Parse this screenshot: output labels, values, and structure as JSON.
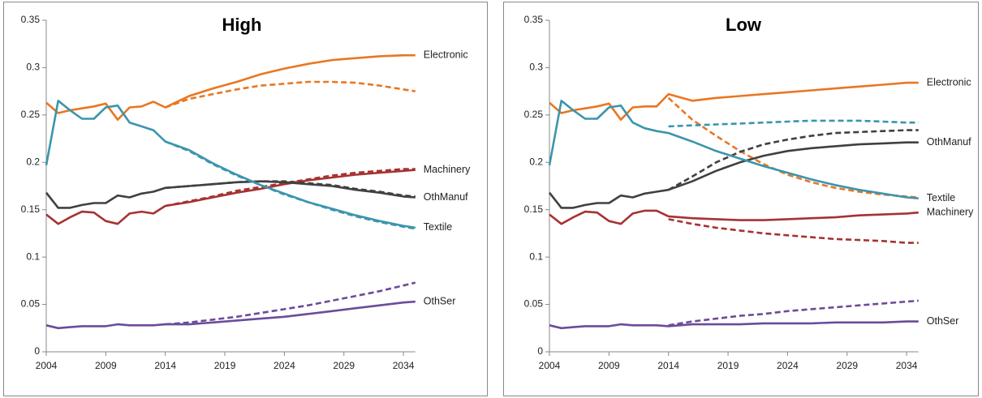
{
  "chart_data": [
    {
      "type": "line",
      "title": "High",
      "x": [
        2004,
        2005,
        2006,
        2007,
        2008,
        2009,
        2010,
        2011,
        2012,
        2013,
        2014,
        2016,
        2018,
        2020,
        2022,
        2024,
        2026,
        2028,
        2030,
        2032,
        2034,
        2035
      ],
      "xlim": [
        2004,
        2035
      ],
      "xticks": [
        2004,
        2009,
        2014,
        2019,
        2024,
        2029,
        2034
      ],
      "ylim": [
        0,
        0.35
      ],
      "yticks": [
        0,
        0.05,
        0.1,
        0.15,
        0.2,
        0.25,
        0.3,
        0.35
      ],
      "grid": false,
      "series": [
        {
          "name": "Electronic",
          "color": "#e87722",
          "values": [
            0.263,
            0.252,
            0.255,
            0.257,
            0.259,
            0.262,
            0.245,
            0.258,
            0.259,
            0.264,
            0.258,
            0.27,
            0.278,
            0.285,
            0.293,
            0.299,
            0.304,
            0.308,
            0.31,
            0.312,
            0.313,
            0.313
          ],
          "dashed_values": [
            null,
            null,
            null,
            null,
            null,
            null,
            null,
            null,
            null,
            null,
            0.258,
            0.267,
            0.272,
            0.277,
            0.281,
            0.283,
            0.285,
            0.285,
            0.284,
            0.281,
            0.277,
            0.275
          ]
        },
        {
          "name": "Machinery",
          "color": "#a63232",
          "values": [
            0.145,
            0.135,
            0.142,
            0.148,
            0.147,
            0.138,
            0.135,
            0.146,
            0.148,
            0.146,
            0.154,
            0.158,
            0.163,
            0.168,
            0.172,
            0.177,
            0.181,
            0.184,
            0.187,
            0.189,
            0.191,
            0.192
          ],
          "dashed_values": [
            null,
            null,
            null,
            null,
            null,
            null,
            null,
            null,
            null,
            null,
            0.154,
            0.159,
            0.164,
            0.17,
            0.174,
            0.178,
            0.182,
            0.186,
            0.189,
            0.191,
            0.193,
            0.193
          ]
        },
        {
          "name": "OthManuf",
          "color": "#404040",
          "values": [
            0.168,
            0.152,
            0.152,
            0.155,
            0.157,
            0.157,
            0.165,
            0.163,
            0.167,
            0.169,
            0.173,
            0.175,
            0.177,
            0.179,
            0.18,
            0.179,
            0.177,
            0.175,
            0.171,
            0.168,
            0.164,
            0.163
          ],
          "dashed_values": [
            null,
            null,
            null,
            null,
            null,
            null,
            null,
            null,
            null,
            null,
            0.173,
            0.175,
            0.177,
            0.179,
            0.18,
            0.18,
            0.178,
            0.176,
            0.172,
            0.169,
            0.165,
            0.164
          ]
        },
        {
          "name": "Textile",
          "color": "#3a95ad",
          "values": [
            0.197,
            0.265,
            0.255,
            0.246,
            0.246,
            0.258,
            0.26,
            0.242,
            0.238,
            0.234,
            0.222,
            0.213,
            0.199,
            0.187,
            0.176,
            0.167,
            0.158,
            0.151,
            0.144,
            0.138,
            0.133,
            0.131
          ],
          "dashed_values": [
            null,
            null,
            null,
            null,
            null,
            null,
            null,
            null,
            null,
            null,
            0.222,
            0.212,
            0.198,
            0.186,
            0.176,
            0.166,
            0.158,
            0.15,
            0.143,
            0.137,
            0.132,
            0.13
          ]
        },
        {
          "name": "OthSer",
          "color": "#6b4c9a",
          "values": [
            0.028,
            0.025,
            0.026,
            0.027,
            0.027,
            0.027,
            0.029,
            0.028,
            0.028,
            0.028,
            0.029,
            0.029,
            0.031,
            0.033,
            0.035,
            0.037,
            0.04,
            0.043,
            0.046,
            0.049,
            0.052,
            0.053
          ],
          "dashed_values": [
            null,
            null,
            null,
            null,
            null,
            null,
            null,
            null,
            null,
            null,
            0.029,
            0.031,
            0.034,
            0.037,
            0.041,
            0.045,
            0.049,
            0.054,
            0.059,
            0.064,
            0.07,
            0.073
          ]
        }
      ]
    },
    {
      "type": "line",
      "title": "Low",
      "x": [
        2004,
        2005,
        2006,
        2007,
        2008,
        2009,
        2010,
        2011,
        2012,
        2013,
        2014,
        2016,
        2018,
        2020,
        2022,
        2024,
        2026,
        2028,
        2030,
        2032,
        2034,
        2035
      ],
      "xlim": [
        2004,
        2035
      ],
      "xticks": [
        2004,
        2009,
        2014,
        2019,
        2024,
        2029,
        2034
      ],
      "ylim": [
        0,
        0.35
      ],
      "yticks": [
        0,
        0.05,
        0.1,
        0.15,
        0.2,
        0.25,
        0.3,
        0.35
      ],
      "grid": false,
      "series": [
        {
          "name": "Electronic",
          "color": "#e87722",
          "values": [
            0.263,
            0.252,
            0.255,
            0.257,
            0.259,
            0.262,
            0.245,
            0.258,
            0.259,
            0.259,
            0.272,
            0.265,
            0.268,
            0.27,
            0.272,
            0.274,
            0.276,
            0.278,
            0.28,
            0.282,
            0.284,
            0.284
          ],
          "dashed_values": [
            null,
            null,
            null,
            null,
            null,
            null,
            null,
            null,
            null,
            null,
            0.268,
            0.245,
            0.228,
            0.212,
            0.198,
            0.187,
            0.179,
            0.173,
            0.169,
            0.166,
            0.164,
            0.163
          ]
        },
        {
          "name": "OthManuf",
          "color": "#404040",
          "values": [
            0.168,
            0.152,
            0.152,
            0.155,
            0.157,
            0.157,
            0.165,
            0.163,
            0.167,
            0.169,
            0.171,
            0.18,
            0.191,
            0.2,
            0.207,
            0.212,
            0.215,
            0.217,
            0.219,
            0.22,
            0.221,
            0.221
          ],
          "dashed_values": [
            null,
            null,
            null,
            null,
            null,
            null,
            null,
            null,
            null,
            null,
            0.171,
            0.185,
            0.2,
            0.211,
            0.219,
            0.224,
            0.228,
            0.231,
            0.232,
            0.233,
            0.234,
            0.234
          ]
        },
        {
          "name": "Textile",
          "color": "#3a95ad",
          "values": [
            0.197,
            0.265,
            0.255,
            0.246,
            0.246,
            0.258,
            0.26,
            0.242,
            0.236,
            0.233,
            0.231,
            0.222,
            0.212,
            0.204,
            0.196,
            0.189,
            0.182,
            0.176,
            0.171,
            0.167,
            0.163,
            0.162
          ],
          "dashed_values": [
            null,
            null,
            null,
            null,
            null,
            null,
            null,
            null,
            null,
            null,
            0.238,
            0.239,
            0.24,
            0.241,
            0.242,
            0.243,
            0.244,
            0.244,
            0.244,
            0.243,
            0.242,
            0.242
          ]
        },
        {
          "name": "Machinery",
          "color": "#a63232",
          "values": [
            0.145,
            0.135,
            0.142,
            0.148,
            0.147,
            0.138,
            0.135,
            0.146,
            0.149,
            0.149,
            0.143,
            0.141,
            0.14,
            0.139,
            0.139,
            0.14,
            0.141,
            0.142,
            0.144,
            0.145,
            0.146,
            0.147
          ],
          "dashed_values": [
            null,
            null,
            null,
            null,
            null,
            null,
            null,
            null,
            null,
            null,
            0.14,
            0.135,
            0.131,
            0.128,
            0.125,
            0.123,
            0.121,
            0.119,
            0.118,
            0.117,
            0.115,
            0.115
          ]
        },
        {
          "name": "OthSer",
          "color": "#6b4c9a",
          "values": [
            0.028,
            0.025,
            0.026,
            0.027,
            0.027,
            0.027,
            0.029,
            0.028,
            0.028,
            0.028,
            0.027,
            0.029,
            0.029,
            0.029,
            0.03,
            0.03,
            0.03,
            0.031,
            0.031,
            0.031,
            0.032,
            0.032
          ],
          "dashed_values": [
            null,
            null,
            null,
            null,
            null,
            null,
            null,
            null,
            null,
            null,
            0.028,
            0.032,
            0.035,
            0.038,
            0.04,
            0.043,
            0.045,
            0.047,
            0.049,
            0.051,
            0.053,
            0.054
          ]
        }
      ]
    }
  ]
}
